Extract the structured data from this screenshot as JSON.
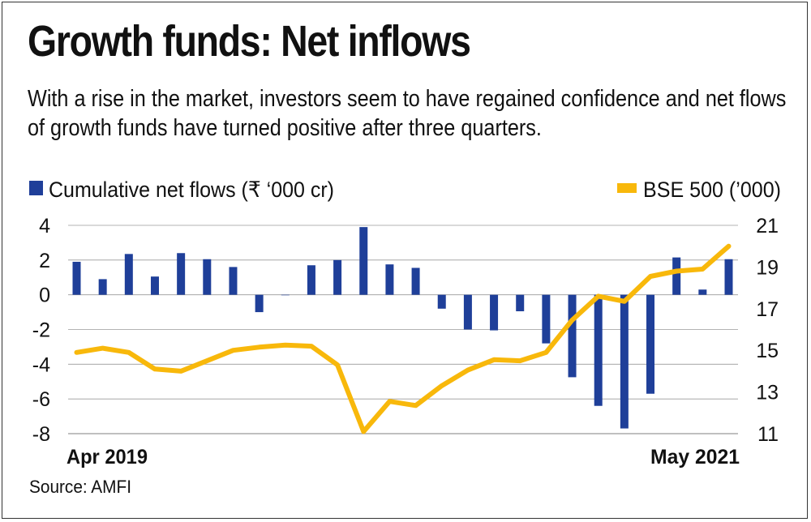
{
  "header": {
    "title": "Growth funds: Net inflows",
    "subtitle": "With a rise in the market, investors seem to have regained confidence and net flows of growth funds have turned positive after three quarters."
  },
  "source": "Source: AMFI",
  "colors": {
    "bar": "#1f3f99",
    "line": "#f8b80b",
    "grid": "#9a9a9a"
  },
  "chart_data": {
    "type": "bar",
    "x_start_label": "Apr 2019",
    "x_end_label": "May 2021",
    "series": [
      {
        "name": "Cumulative net flows (₹ ‘000 cr)",
        "type": "bar",
        "axis": "left",
        "values": [
          1.9,
          0.9,
          2.35,
          1.05,
          2.4,
          2.05,
          1.6,
          -1.0,
          0.0,
          1.7,
          2.0,
          3.9,
          1.75,
          1.55,
          -0.8,
          -2.0,
          -2.05,
          -0.95,
          -2.8,
          -4.75,
          -6.4,
          -7.7,
          -5.7,
          2.15,
          0.3,
          2.05
        ]
      },
      {
        "name": "BSE 500 (’000)",
        "type": "line",
        "axis": "right",
        "values": [
          14.9,
          15.1,
          14.9,
          14.1,
          14.0,
          14.5,
          15.0,
          15.15,
          15.25,
          15.2,
          14.3,
          11.1,
          12.55,
          12.35,
          13.3,
          14.05,
          14.55,
          14.5,
          14.9,
          16.45,
          17.6,
          17.35,
          18.55,
          18.8,
          18.9,
          20.0
        ]
      }
    ],
    "y_left": {
      "ticks": [
        "4",
        "2",
        "0",
        "-2",
        "-4",
        "-6",
        "-8"
      ],
      "range": [
        -8,
        4
      ]
    },
    "y_right": {
      "ticks": [
        "21",
        "19",
        "17",
        "15",
        "13",
        "11"
      ],
      "range": [
        11,
        21
      ]
    },
    "grid": true,
    "legend_position": "top"
  }
}
